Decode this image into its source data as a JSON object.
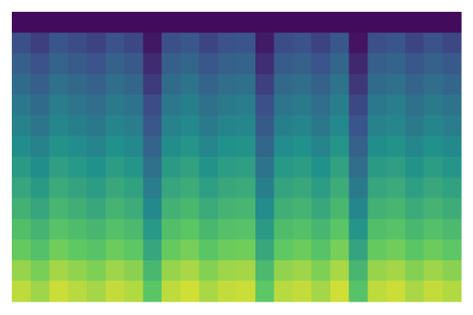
{
  "chart_data": {
    "type": "heatmap",
    "zlim": [
      0,
      1
    ],
    "colorscale": [
      "#440154",
      "#3b528b",
      "#21918c",
      "#5ec962",
      "#fde725"
    ],
    "z": [
      [
        0.03,
        0.03,
        0.03,
        0.03,
        0.03,
        0.03,
        0.03,
        0.03,
        0.03,
        0.03,
        0.03,
        0.03,
        0.03,
        0.03,
        0.03,
        0.03,
        0.03,
        0.03,
        0.03,
        0.03,
        0.03,
        0.03,
        0.03,
        0.03
      ],
      [
        0.24,
        0.19,
        0.26,
        0.23,
        0.2,
        0.25,
        0.22,
        0.07,
        0.24,
        0.27,
        0.21,
        0.25,
        0.26,
        0.08,
        0.23,
        0.25,
        0.2,
        0.27,
        0.06,
        0.24,
        0.26,
        0.21,
        0.25,
        0.22
      ],
      [
        0.3,
        0.25,
        0.32,
        0.29,
        0.26,
        0.31,
        0.28,
        0.13,
        0.3,
        0.33,
        0.27,
        0.31,
        0.32,
        0.14,
        0.29,
        0.31,
        0.26,
        0.33,
        0.12,
        0.3,
        0.32,
        0.27,
        0.31,
        0.28
      ],
      [
        0.35,
        0.3,
        0.37,
        0.34,
        0.31,
        0.36,
        0.33,
        0.18,
        0.35,
        0.38,
        0.32,
        0.36,
        0.37,
        0.19,
        0.34,
        0.36,
        0.31,
        0.38,
        0.17,
        0.35,
        0.37,
        0.32,
        0.36,
        0.33
      ],
      [
        0.4,
        0.35,
        0.42,
        0.39,
        0.36,
        0.41,
        0.38,
        0.23,
        0.4,
        0.43,
        0.37,
        0.41,
        0.42,
        0.24,
        0.39,
        0.41,
        0.36,
        0.43,
        0.22,
        0.4,
        0.42,
        0.37,
        0.41,
        0.38
      ],
      [
        0.44,
        0.39,
        0.46,
        0.43,
        0.4,
        0.45,
        0.42,
        0.27,
        0.44,
        0.47,
        0.41,
        0.45,
        0.46,
        0.28,
        0.43,
        0.45,
        0.4,
        0.47,
        0.26,
        0.44,
        0.46,
        0.41,
        0.45,
        0.42
      ],
      [
        0.49,
        0.44,
        0.51,
        0.48,
        0.45,
        0.5,
        0.47,
        0.32,
        0.49,
        0.52,
        0.46,
        0.5,
        0.51,
        0.33,
        0.48,
        0.5,
        0.45,
        0.52,
        0.31,
        0.49,
        0.51,
        0.46,
        0.5,
        0.47
      ],
      [
        0.54,
        0.49,
        0.56,
        0.53,
        0.5,
        0.55,
        0.52,
        0.37,
        0.54,
        0.57,
        0.51,
        0.55,
        0.56,
        0.38,
        0.53,
        0.55,
        0.5,
        0.57,
        0.36,
        0.54,
        0.56,
        0.51,
        0.55,
        0.52
      ],
      [
        0.59,
        0.54,
        0.61,
        0.58,
        0.55,
        0.6,
        0.57,
        0.42,
        0.59,
        0.62,
        0.56,
        0.6,
        0.61,
        0.43,
        0.58,
        0.6,
        0.55,
        0.62,
        0.41,
        0.59,
        0.61,
        0.56,
        0.6,
        0.57
      ],
      [
        0.64,
        0.59,
        0.66,
        0.63,
        0.6,
        0.65,
        0.62,
        0.47,
        0.64,
        0.67,
        0.61,
        0.65,
        0.66,
        0.48,
        0.63,
        0.65,
        0.6,
        0.67,
        0.46,
        0.64,
        0.66,
        0.61,
        0.65,
        0.62
      ],
      [
        0.7,
        0.65,
        0.72,
        0.69,
        0.66,
        0.71,
        0.68,
        0.53,
        0.7,
        0.73,
        0.67,
        0.71,
        0.72,
        0.54,
        0.69,
        0.71,
        0.66,
        0.73,
        0.52,
        0.7,
        0.72,
        0.67,
        0.71,
        0.68
      ],
      [
        0.76,
        0.71,
        0.78,
        0.75,
        0.72,
        0.77,
        0.74,
        0.59,
        0.76,
        0.79,
        0.73,
        0.77,
        0.78,
        0.6,
        0.75,
        0.77,
        0.72,
        0.79,
        0.58,
        0.76,
        0.78,
        0.73,
        0.77,
        0.74
      ],
      [
        0.84,
        0.79,
        0.86,
        0.83,
        0.8,
        0.85,
        0.82,
        0.67,
        0.84,
        0.87,
        0.81,
        0.85,
        0.86,
        0.68,
        0.83,
        0.85,
        0.8,
        0.87,
        0.66,
        0.84,
        0.86,
        0.81,
        0.85,
        0.82
      ],
      [
        0.9,
        0.85,
        0.92,
        0.89,
        0.86,
        0.91,
        0.88,
        0.73,
        0.9,
        0.93,
        0.87,
        0.91,
        0.92,
        0.74,
        0.89,
        0.91,
        0.86,
        0.93,
        0.72,
        0.9,
        0.92,
        0.87,
        0.91,
        0.88
      ]
    ]
  }
}
